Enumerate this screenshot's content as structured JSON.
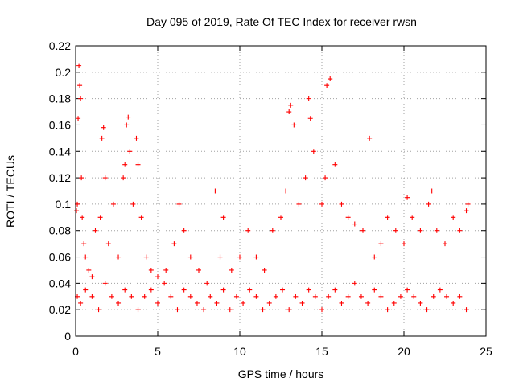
{
  "chart_data": {
    "type": "scatter",
    "title": "Day 095 of 2019, Rate Of TEC Index for receiver rwsn",
    "xlabel": "GPS time / hours",
    "ylabel": "ROTI / TECUs",
    "xlim": [
      0,
      25
    ],
    "ylim": [
      0,
      0.22
    ],
    "x_ticks": [
      0,
      5,
      10,
      15,
      20,
      25
    ],
    "y_ticks": [
      0,
      0.02,
      0.04,
      0.06,
      0.08,
      0.1,
      0.12,
      0.14,
      0.16,
      0.18,
      0.2,
      0.22
    ],
    "x_tick_labels": [
      "0",
      "5",
      "10",
      "15",
      "20",
      "25"
    ],
    "y_tick_labels": [
      "0",
      "0.02",
      "0.04",
      "0.06",
      "0.08",
      "0.1",
      "0.12",
      "0.14",
      "0.16",
      "0.18",
      "0.2",
      "0.22"
    ],
    "grid": true,
    "marker": "+",
    "series": [
      {
        "color": "#ff0000",
        "x": [
          0.05,
          0.1,
          0.15,
          0.2,
          0.25,
          0.3,
          0.35,
          0.4,
          0.5,
          0.6,
          0.8,
          1.0,
          1.2,
          1.5,
          1.6,
          1.7,
          1.8,
          2.0,
          2.3,
          2.6,
          2.9,
          3.0,
          3.1,
          3.2,
          3.3,
          3.5,
          3.7,
          3.8,
          4.0,
          4.3,
          4.6,
          5.0,
          5.5,
          6.0,
          6.3,
          6.6,
          7.0,
          7.5,
          8.0,
          8.5,
          8.8,
          9.0,
          9.5,
          10.0,
          10.5,
          11.0,
          11.5,
          12.0,
          12.5,
          12.8,
          13.0,
          13.1,
          13.3,
          13.6,
          14.0,
          14.2,
          14.3,
          14.5,
          15.0,
          15.2,
          15.3,
          15.5,
          15.8,
          16.2,
          16.6,
          17.0,
          17.5,
          17.9,
          18.2,
          18.6,
          19.0,
          19.5,
          20.0,
          20.2,
          20.5,
          21.0,
          21.5,
          21.7,
          22.0,
          22.5,
          23.0,
          23.4,
          23.8,
          23.9
        ],
        "y": [
          0.095,
          0.1,
          0.165,
          0.205,
          0.19,
          0.18,
          0.12,
          0.09,
          0.07,
          0.06,
          0.05,
          0.045,
          0.08,
          0.09,
          0.15,
          0.158,
          0.12,
          0.07,
          0.1,
          0.06,
          0.12,
          0.13,
          0.16,
          0.166,
          0.14,
          0.1,
          0.15,
          0.13,
          0.09,
          0.06,
          0.05,
          0.045,
          0.05,
          0.07,
          0.1,
          0.08,
          0.06,
          0.05,
          0.04,
          0.11,
          0.06,
          0.09,
          0.05,
          0.06,
          0.08,
          0.06,
          0.05,
          0.08,
          0.09,
          0.11,
          0.17,
          0.175,
          0.16,
          0.1,
          0.12,
          0.18,
          0.165,
          0.14,
          0.1,
          0.12,
          0.19,
          0.195,
          0.13,
          0.1,
          0.09,
          0.085,
          0.08,
          0.15,
          0.06,
          0.07,
          0.09,
          0.08,
          0.07,
          0.105,
          0.09,
          0.08,
          0.1,
          0.11,
          0.08,
          0.07,
          0.09,
          0.08,
          0.095,
          0.1
        ]
      },
      {
        "color": "#ff0000",
        "x": [
          0.1,
          0.3,
          0.6,
          1.0,
          1.4,
          1.8,
          2.2,
          2.6,
          3.0,
          3.4,
          3.8,
          4.2,
          4.6,
          5.0,
          5.4,
          5.8,
          6.2,
          6.6,
          7.0,
          7.4,
          7.8,
          8.2,
          8.6,
          9.0,
          9.4,
          9.8,
          10.2,
          10.6,
          11.0,
          11.4,
          11.8,
          12.2,
          12.6,
          13.0,
          13.4,
          13.8,
          14.2,
          14.6,
          15.0,
          15.4,
          15.8,
          16.2,
          16.6,
          17.0,
          17.4,
          17.8,
          18.2,
          18.6,
          19.0,
          19.4,
          19.8,
          20.2,
          20.6,
          21.0,
          21.4,
          21.8,
          22.2,
          22.6,
          23.0,
          23.4,
          23.8
        ],
        "y": [
          0.03,
          0.025,
          0.035,
          0.03,
          0.02,
          0.04,
          0.03,
          0.025,
          0.035,
          0.03,
          0.02,
          0.03,
          0.035,
          0.025,
          0.04,
          0.03,
          0.02,
          0.035,
          0.03,
          0.025,
          0.02,
          0.03,
          0.025,
          0.035,
          0.02,
          0.03,
          0.025,
          0.035,
          0.03,
          0.02,
          0.025,
          0.03,
          0.035,
          0.02,
          0.03,
          0.025,
          0.035,
          0.03,
          0.02,
          0.03,
          0.035,
          0.025,
          0.03,
          0.04,
          0.03,
          0.025,
          0.035,
          0.03,
          0.02,
          0.025,
          0.03,
          0.035,
          0.03,
          0.025,
          0.02,
          0.03,
          0.035,
          0.03,
          0.025,
          0.03,
          0.02
        ]
      }
    ]
  }
}
